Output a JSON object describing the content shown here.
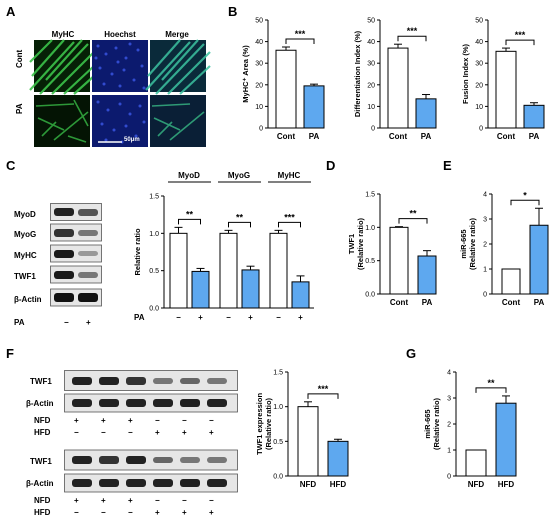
{
  "panels": {
    "A": {
      "letter": "A",
      "columns": [
        "MyHC",
        "Hoechst",
        "Merge"
      ],
      "rows": [
        "Cont",
        "PA"
      ],
      "scale_bar": "50μm"
    },
    "B": {
      "letter": "B"
    },
    "C": {
      "letter": "C",
      "blot_labels": [
        "MyoD",
        "MyoG",
        "MyHC",
        "TWF1",
        "β-Actin"
      ],
      "pa_row": {
        "label": "PA",
        "signs": [
          "−",
          "+"
        ]
      },
      "group_headers": [
        "MyoD",
        "MyoG",
        "MyHC"
      ]
    },
    "D": {
      "letter": "D"
    },
    "E": {
      "letter": "E"
    },
    "F": {
      "letter": "F",
      "blot1": [
        "TWF1",
        "β-Actin"
      ],
      "blot2": [
        "TWF1",
        "β-Actin"
      ],
      "row_labels": [
        "NFD",
        "HFD"
      ],
      "signs_nfd": [
        "+",
        "+",
        "+",
        "−",
        "−",
        "−"
      ],
      "signs_hfd": [
        "−",
        "−",
        "−",
        "+",
        "+",
        "+"
      ]
    },
    "G": {
      "letter": "G"
    }
  },
  "colors": {
    "control": "#ffffff",
    "treated": "#5ea8ef",
    "green": "#3cc24a",
    "blue": "#1c3cc8"
  },
  "chart_data": [
    {
      "id": "B1",
      "type": "bar",
      "categories": [
        "Cont",
        "PA"
      ],
      "values": [
        36,
        19.5
      ],
      "errors": [
        1.5,
        0.8
      ],
      "ylabel": "MyHC⁺ Area (%)",
      "ylim": [
        0,
        50
      ],
      "yticks": [
        0,
        10,
        20,
        30,
        40,
        50
      ],
      "significance": "***"
    },
    {
      "id": "B2",
      "type": "bar",
      "categories": [
        "Cont",
        "PA"
      ],
      "values": [
        37,
        13.5
      ],
      "errors": [
        1.8,
        2.0
      ],
      "ylabel": "Differentiation Index (%)",
      "ylim": [
        0,
        50
      ],
      "yticks": [
        0,
        10,
        20,
        30,
        40,
        50
      ],
      "significance": "***"
    },
    {
      "id": "B3",
      "type": "bar",
      "categories": [
        "Cont",
        "PA"
      ],
      "values": [
        35.5,
        10.5
      ],
      "errors": [
        1.5,
        1.2
      ],
      "ylabel": "Fusion Index (%)",
      "ylim": [
        0,
        50
      ],
      "yticks": [
        0,
        10,
        20,
        30,
        40,
        50
      ],
      "significance": "***"
    },
    {
      "id": "C",
      "type": "bar",
      "categories": [
        "MyoD",
        "MyoG",
        "MyHC"
      ],
      "series": [
        {
          "values": [
            1.0,
            1.0,
            1.0
          ],
          "errors": [
            0.08,
            0.04,
            0.04
          ]
        },
        {
          "values": [
            0.49,
            0.51,
            0.35
          ],
          "errors": [
            0.04,
            0.05,
            0.08
          ]
        }
      ],
      "ylabel": "Relative ratio",
      "ylim": [
        0,
        1.5
      ],
      "yticks": [
        0.0,
        0.5,
        1.0,
        1.5
      ],
      "significance": [
        "**",
        "**",
        "***"
      ],
      "xrow": {
        "label": "PA",
        "signs": [
          "−",
          "+",
          "−",
          "+",
          "−",
          "+"
        ]
      }
    },
    {
      "id": "D",
      "type": "bar",
      "categories": [
        "Cont",
        "PA"
      ],
      "values": [
        1.0,
        0.57
      ],
      "errors": [
        0.01,
        0.08
      ],
      "ylabel": "TWF1",
      "ylabel2": "(Relative ratio)",
      "ylim": [
        0,
        1.5
      ],
      "yticks": [
        0.0,
        0.5,
        1.0,
        1.5
      ],
      "significance": "**"
    },
    {
      "id": "E",
      "type": "bar",
      "categories": [
        "Cont",
        "PA"
      ],
      "values": [
        1.0,
        2.75
      ],
      "errors": [
        0,
        0.68
      ],
      "ylabel": "miR-665",
      "ylabel2": "(Relative ratio)",
      "ylim": [
        0,
        4
      ],
      "yticks": [
        0,
        1,
        2,
        3,
        4
      ],
      "significance": "*"
    },
    {
      "id": "F",
      "type": "bar",
      "categories": [
        "NFD",
        "HFD"
      ],
      "values": [
        1.0,
        0.5
      ],
      "errors": [
        0.07,
        0.03
      ],
      "ylabel": "TWF1 expression",
      "ylabel2": "(Relative ratio)",
      "ylim": [
        0,
        1.5
      ],
      "yticks": [
        0.0,
        0.5,
        1.0,
        1.5
      ],
      "significance": "***"
    },
    {
      "id": "G",
      "type": "bar",
      "categories": [
        "NFD",
        "HFD"
      ],
      "values": [
        1.0,
        2.8
      ],
      "errors": [
        0,
        0.28
      ],
      "ylabel": "miR-665",
      "ylabel2": "(Relative ratio)",
      "ylim": [
        0,
        4
      ],
      "yticks": [
        0,
        1,
        2,
        3,
        4
      ],
      "significance": "**"
    }
  ]
}
